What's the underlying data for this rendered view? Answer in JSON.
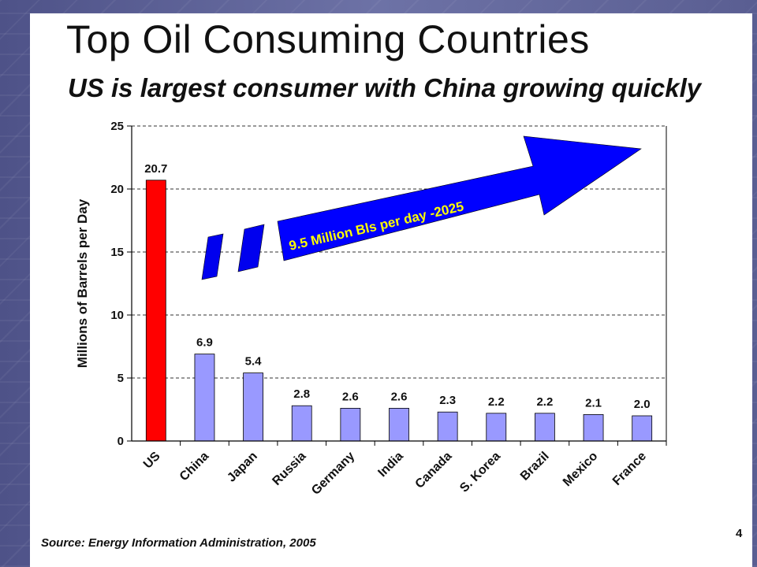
{
  "slide": {
    "title": "Top Oil Consuming Countries",
    "subtitle": "US is largest consumer with China growing quickly",
    "source": "Source: Energy Information Administration, 2005",
    "page_number": "4"
  },
  "chart_data": {
    "type": "bar",
    "categories": [
      "US",
      "China",
      "Japan",
      "Russia",
      "Germany",
      "India",
      "Canada",
      "S. Korea",
      "Brazil",
      "Mexico",
      "France"
    ],
    "values": [
      20.7,
      6.9,
      5.4,
      2.8,
      2.6,
      2.6,
      2.3,
      2.2,
      2.2,
      2.1,
      2.0
    ],
    "data_labels": [
      "20.7",
      "6.9",
      "5.4",
      "2.8",
      "2.6",
      "2.6",
      "2.3",
      "2.2",
      "2.2",
      "2.1",
      "2.0"
    ],
    "ylabel": "Millions of Barrels per Day",
    "ylim": [
      0,
      25
    ],
    "yticks": [
      0,
      5,
      10,
      15,
      20,
      25
    ],
    "grid": "dashed horizontal",
    "colors": {
      "highlight": "#ff0000",
      "bar": "#9999ff",
      "arrow": "#0000ff",
      "arrow_text": "#ffff00"
    },
    "annotation": "9.5 Million Bls per day -2025"
  }
}
